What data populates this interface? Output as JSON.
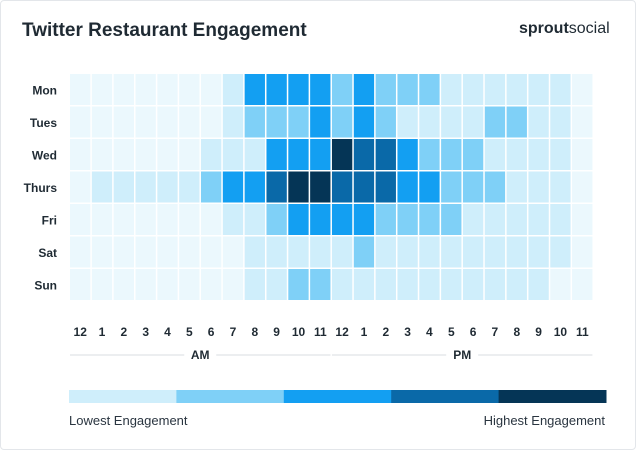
{
  "brand": {
    "part1": "sprout",
    "part2": "social"
  },
  "chart_data": {
    "type": "heatmap",
    "title": "Twitter Restaurant Engagement",
    "rows": [
      "Mon",
      "Tues",
      "Wed",
      "Thurs",
      "Fri",
      "Sat",
      "Sun"
    ],
    "columns": [
      "12",
      "1",
      "2",
      "3",
      "4",
      "5",
      "6",
      "7",
      "8",
      "9",
      "10",
      "11",
      "12",
      "1",
      "2",
      "3",
      "4",
      "5",
      "6",
      "7",
      "8",
      "9",
      "10",
      "11"
    ],
    "periods": [
      {
        "label": "AM",
        "start": 0,
        "end": 11
      },
      {
        "label": "PM",
        "start": 12,
        "end": 23
      }
    ],
    "levels": [
      {
        "level": 0,
        "color": "#ebf8fd"
      },
      {
        "level": 1,
        "color": "#cfeefb"
      },
      {
        "level": 2,
        "color": "#7fd0f7"
      },
      {
        "level": 3,
        "color": "#139ff2"
      },
      {
        "level": 4,
        "color": "#0a69a8"
      },
      {
        "level": 5,
        "color": "#053556"
      }
    ],
    "values": [
      [
        0,
        0,
        0,
        0,
        0,
        0,
        0,
        1,
        3,
        3,
        3,
        3,
        2,
        3,
        2,
        2,
        2,
        1,
        1,
        1,
        1,
        1,
        1,
        0
      ],
      [
        0,
        0,
        0,
        0,
        0,
        0,
        0,
        1,
        2,
        2,
        2,
        3,
        2,
        3,
        2,
        1,
        1,
        1,
        1,
        2,
        2,
        1,
        1,
        0
      ],
      [
        0,
        0,
        0,
        0,
        0,
        0,
        1,
        1,
        1,
        3,
        3,
        3,
        5,
        4,
        4,
        3,
        2,
        2,
        2,
        1,
        1,
        1,
        1,
        0
      ],
      [
        0,
        1,
        1,
        1,
        1,
        1,
        2,
        3,
        3,
        4,
        5,
        5,
        4,
        4,
        4,
        3,
        3,
        2,
        2,
        2,
        1,
        1,
        1,
        0
      ],
      [
        0,
        0,
        0,
        0,
        0,
        0,
        0,
        1,
        1,
        2,
        3,
        3,
        3,
        3,
        2,
        2,
        2,
        2,
        1,
        1,
        1,
        1,
        1,
        0
      ],
      [
        0,
        0,
        0,
        0,
        0,
        0,
        0,
        0,
        1,
        1,
        1,
        1,
        1,
        2,
        1,
        1,
        1,
        1,
        1,
        1,
        1,
        1,
        1,
        0
      ],
      [
        0,
        0,
        0,
        0,
        0,
        0,
        0,
        0,
        1,
        1,
        2,
        2,
        1,
        1,
        1,
        1,
        1,
        1,
        1,
        1,
        1,
        1,
        0,
        0
      ]
    ],
    "legend": {
      "colors": [
        "#cfeefb",
        "#7fd0f7",
        "#139ff2",
        "#0a69a8",
        "#053556"
      ],
      "low_label": "Lowest Engagement",
      "high_label": "Highest Engagement"
    }
  }
}
